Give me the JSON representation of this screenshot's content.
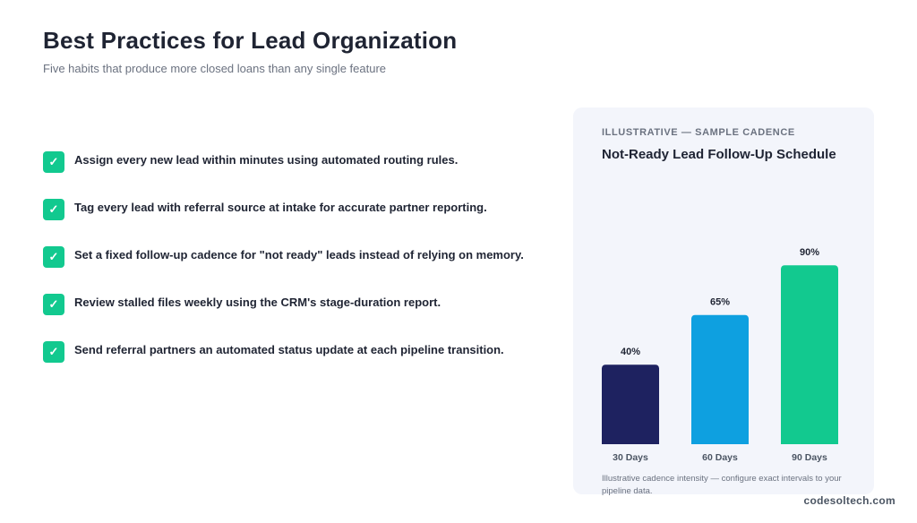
{
  "header": {
    "title": "Best Practices for Lead Organization",
    "subtitle": "Five habits that produce more closed loans than any single feature"
  },
  "checklist": {
    "check_glyph": "✓",
    "items": [
      {
        "text": "Assign every new lead within minutes using automated routing rules."
      },
      {
        "text": "Tag every lead with referral source at intake for accurate partner reporting."
      },
      {
        "text": "Set a fixed follow-up cadence for \"not ready\" leads instead of relying on memory."
      },
      {
        "text": "Review stalled files weekly using the CRM's stage-duration report."
      },
      {
        "text": "Send referral partners an automated status update at each pipeline transition."
      }
    ]
  },
  "card": {
    "eyebrow": "ILLUSTRATIVE — SAMPLE CADENCE",
    "title": "Not-Ready Lead Follow-Up Schedule",
    "footnote": "Illustrative cadence intensity — configure exact intervals to your pipeline data."
  },
  "chart_data": {
    "type": "bar",
    "title": "Not-Ready Lead Follow-Up Schedule",
    "categories": [
      "30 Days",
      "60 Days",
      "90 Days"
    ],
    "values": [
      40,
      65,
      90
    ],
    "value_labels": [
      "40%",
      "65%",
      "90%"
    ],
    "colors": [
      "#1e2260",
      "#0ea0e0",
      "#12c98f"
    ],
    "ylim": [
      0,
      100
    ],
    "grid": false,
    "xlabel": "",
    "ylabel": ""
  },
  "footer": {
    "brand": "codesoltech.com"
  },
  "colors": {
    "accent": "#12c98f",
    "card_bg": "#f3f5fb",
    "text_dark": "#1f2433",
    "text_muted": "#6b7280"
  }
}
